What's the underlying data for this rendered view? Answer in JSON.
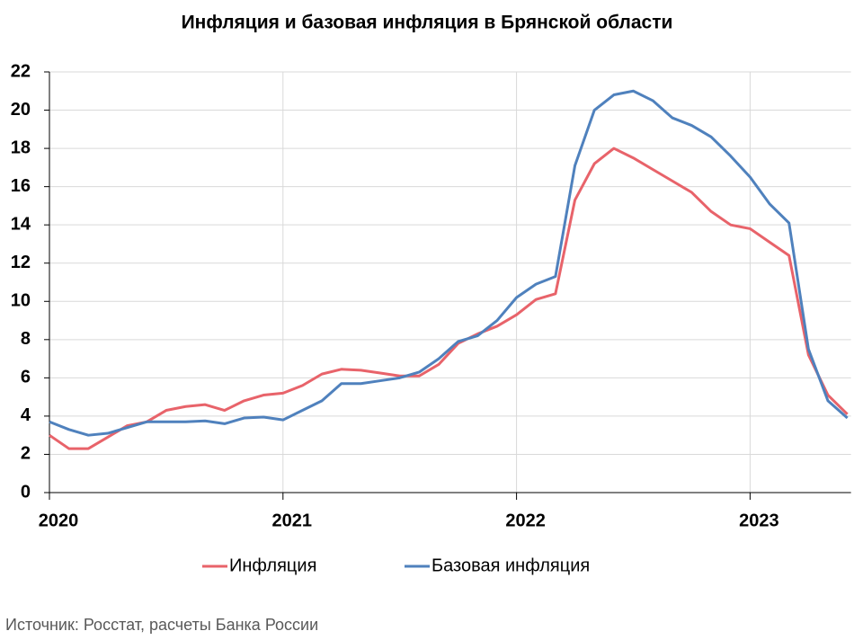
{
  "chart_data": {
    "type": "line",
    "title": "Инфляция и базовая инфляция в Брянской области",
    "source": "Источник: Росстат, расчеты Банка России",
    "categories": [
      "2020",
      null,
      null,
      null,
      null,
      null,
      null,
      null,
      null,
      null,
      null,
      null,
      "2021",
      null,
      null,
      null,
      null,
      null,
      null,
      null,
      null,
      null,
      null,
      null,
      "2022",
      null,
      null,
      null,
      null,
      null,
      null,
      null,
      null,
      null,
      null,
      null,
      "2023",
      null,
      null,
      null,
      null,
      null
    ],
    "series": [
      {
        "name": "Инфляция",
        "color": "#e8636a",
        "values": [
          3.0,
          2.3,
          2.3,
          2.9,
          3.5,
          3.7,
          4.3,
          4.5,
          4.6,
          4.3,
          4.8,
          5.1,
          5.2,
          5.6,
          6.2,
          6.45,
          6.4,
          6.25,
          6.1,
          6.1,
          6.7,
          7.8,
          8.3,
          8.7,
          9.3,
          10.1,
          10.4,
          15.3,
          17.2,
          18.0,
          17.5,
          16.9,
          16.3,
          15.7,
          14.7,
          14.0,
          13.8,
          13.1,
          12.4,
          7.2,
          5.1,
          4.1
        ]
      },
      {
        "name": "Базовая инфляция",
        "color": "#4f81bd",
        "values": [
          3.7,
          3.3,
          3.0,
          3.1,
          3.4,
          3.7,
          3.7,
          3.7,
          3.75,
          3.6,
          3.9,
          3.95,
          3.8,
          4.3,
          4.8,
          5.7,
          5.7,
          5.85,
          6.0,
          6.3,
          7.0,
          7.9,
          8.2,
          9.0,
          10.2,
          10.9,
          11.3,
          17.1,
          20.0,
          20.8,
          21.0,
          20.5,
          19.6,
          19.2,
          18.6,
          17.6,
          16.5,
          15.1,
          14.1,
          7.5,
          4.8,
          3.9
        ]
      }
    ],
    "ylim": [
      0,
      22
    ],
    "yticks": [
      0,
      2,
      4,
      6,
      8,
      10,
      12,
      14,
      16,
      18,
      20,
      22
    ],
    "grid": true,
    "legend": "bottom"
  }
}
